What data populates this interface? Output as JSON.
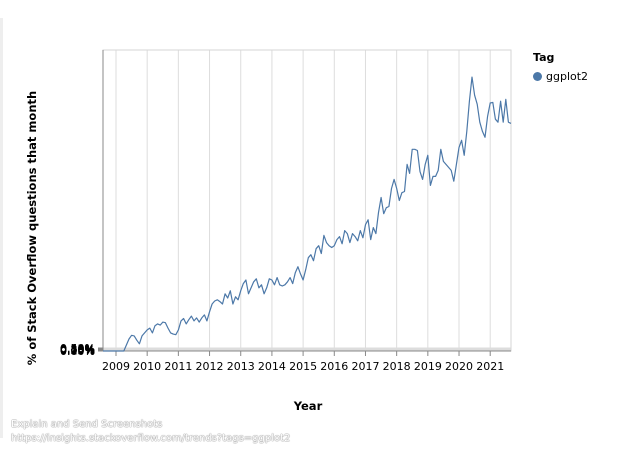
{
  "chart_data": {
    "type": "line",
    "title": "",
    "xlabel": "Year",
    "ylabel": "% of Stack Overflow questions that month",
    "x_ticks": [
      "2009",
      "2010",
      "2011",
      "2012",
      "2013",
      "2014",
      "2015",
      "2016",
      "2017",
      "2018",
      "2019",
      "2020",
      "2021"
    ],
    "y_ticks": [
      "0.00%",
      "0.05%",
      "0.10%",
      "0.15%",
      "0.20%",
      "0.25%",
      "0.30%",
      "0.35%",
      "0.40%",
      "0.45%",
      "0.50%"
    ],
    "xlim": [
      "2008-08",
      "2021-09"
    ],
    "ylim": [
      0,
      0.5
    ],
    "grid": true,
    "legend": {
      "title": "Tag",
      "placement": "top-right"
    },
    "series": [
      {
        "name": "ggplot2",
        "color": "#4c78a8",
        "points": [
          [
            "2008-08",
            0.0
          ],
          [
            "2008-09",
            0.0
          ],
          [
            "2008-10",
            0.0
          ],
          [
            "2008-11",
            0.0
          ],
          [
            "2008-12",
            0.0
          ],
          [
            "2009-01",
            0.0
          ],
          [
            "2009-02",
            0.0
          ],
          [
            "2009-03",
            0.0
          ],
          [
            "2009-04",
            0.0
          ],
          [
            "2009-05",
            0.01
          ],
          [
            "2009-06",
            0.02
          ],
          [
            "2009-07",
            0.026
          ],
          [
            "2009-08",
            0.025
          ],
          [
            "2009-09",
            0.018
          ],
          [
            "2009-10",
            0.012
          ],
          [
            "2009-11",
            0.025
          ],
          [
            "2009-12",
            0.03
          ],
          [
            "2010-01",
            0.035
          ],
          [
            "2010-02",
            0.038
          ],
          [
            "2010-03",
            0.03
          ],
          [
            "2010-04",
            0.042
          ],
          [
            "2010-05",
            0.045
          ],
          [
            "2010-06",
            0.043
          ],
          [
            "2010-07",
            0.048
          ],
          [
            "2010-08",
            0.047
          ],
          [
            "2010-09",
            0.038
          ],
          [
            "2010-10",
            0.03
          ],
          [
            "2010-11",
            0.028
          ],
          [
            "2010-12",
            0.027
          ],
          [
            "2011-01",
            0.035
          ],
          [
            "2011-02",
            0.05
          ],
          [
            "2011-03",
            0.054
          ],
          [
            "2011-04",
            0.045
          ],
          [
            "2011-05",
            0.052
          ],
          [
            "2011-06",
            0.058
          ],
          [
            "2011-07",
            0.05
          ],
          [
            "2011-08",
            0.055
          ],
          [
            "2011-09",
            0.048
          ],
          [
            "2011-10",
            0.055
          ],
          [
            "2011-11",
            0.06
          ],
          [
            "2011-12",
            0.05
          ],
          [
            "2012-01",
            0.065
          ],
          [
            "2012-02",
            0.078
          ],
          [
            "2012-03",
            0.083
          ],
          [
            "2012-04",
            0.085
          ],
          [
            "2012-05",
            0.082
          ],
          [
            "2012-06",
            0.078
          ],
          [
            "2012-07",
            0.095
          ],
          [
            "2012-08",
            0.088
          ],
          [
            "2012-09",
            0.1
          ],
          [
            "2012-10",
            0.078
          ],
          [
            "2012-11",
            0.09
          ],
          [
            "2012-12",
            0.085
          ],
          [
            "2013-01",
            0.1
          ],
          [
            "2013-02",
            0.112
          ],
          [
            "2013-03",
            0.118
          ],
          [
            "2013-04",
            0.095
          ],
          [
            "2013-05",
            0.105
          ],
          [
            "2013-06",
            0.115
          ],
          [
            "2013-07",
            0.12
          ],
          [
            "2013-08",
            0.105
          ],
          [
            "2013-09",
            0.11
          ],
          [
            "2013-10",
            0.095
          ],
          [
            "2013-11",
            0.105
          ],
          [
            "2013-12",
            0.12
          ],
          [
            "2014-01",
            0.118
          ],
          [
            "2014-02",
            0.11
          ],
          [
            "2014-03",
            0.122
          ],
          [
            "2014-04",
            0.11
          ],
          [
            "2014-05",
            0.108
          ],
          [
            "2014-06",
            0.11
          ],
          [
            "2014-07",
            0.115
          ],
          [
            "2014-08",
            0.122
          ],
          [
            "2014-09",
            0.112
          ],
          [
            "2014-10",
            0.13
          ],
          [
            "2014-11",
            0.14
          ],
          [
            "2014-12",
            0.128
          ],
          [
            "2015-01",
            0.118
          ],
          [
            "2015-02",
            0.135
          ],
          [
            "2015-03",
            0.155
          ],
          [
            "2015-04",
            0.16
          ],
          [
            "2015-05",
            0.15
          ],
          [
            "2015-06",
            0.17
          ],
          [
            "2015-07",
            0.175
          ],
          [
            "2015-08",
            0.162
          ],
          [
            "2015-09",
            0.192
          ],
          [
            "2015-10",
            0.18
          ],
          [
            "2015-11",
            0.175
          ],
          [
            "2015-12",
            0.172
          ],
          [
            "2016-01",
            0.175
          ],
          [
            "2016-02",
            0.185
          ],
          [
            "2016-03",
            0.19
          ],
          [
            "2016-04",
            0.178
          ],
          [
            "2016-05",
            0.2
          ],
          [
            "2016-06",
            0.195
          ],
          [
            "2016-07",
            0.18
          ],
          [
            "2016-08",
            0.195
          ],
          [
            "2016-09",
            0.19
          ],
          [
            "2016-10",
            0.183
          ],
          [
            "2016-11",
            0.2
          ],
          [
            "2016-12",
            0.188
          ],
          [
            "2017-01",
            0.21
          ],
          [
            "2017-02",
            0.218
          ],
          [
            "2017-03",
            0.185
          ],
          [
            "2017-04",
            0.205
          ],
          [
            "2017-05",
            0.195
          ],
          [
            "2017-06",
            0.23
          ],
          [
            "2017-07",
            0.255
          ],
          [
            "2017-08",
            0.228
          ],
          [
            "2017-09",
            0.238
          ],
          [
            "2017-10",
            0.24
          ],
          [
            "2017-11",
            0.27
          ],
          [
            "2017-12",
            0.285
          ],
          [
            "2018-01",
            0.27
          ],
          [
            "2018-02",
            0.25
          ],
          [
            "2018-03",
            0.263
          ],
          [
            "2018-04",
            0.265
          ],
          [
            "2018-05",
            0.31
          ],
          [
            "2018-06",
            0.295
          ],
          [
            "2018-07",
            0.335
          ],
          [
            "2018-08",
            0.335
          ],
          [
            "2018-09",
            0.333
          ],
          [
            "2018-10",
            0.298
          ],
          [
            "2018-11",
            0.285
          ],
          [
            "2018-12",
            0.31
          ],
          [
            "2019-01",
            0.325
          ],
          [
            "2019-02",
            0.275
          ],
          [
            "2019-03",
            0.29
          ],
          [
            "2019-04",
            0.29
          ],
          [
            "2019-05",
            0.3
          ],
          [
            "2019-06",
            0.335
          ],
          [
            "2019-07",
            0.315
          ],
          [
            "2019-08",
            0.31
          ],
          [
            "2019-09",
            0.305
          ],
          [
            "2019-10",
            0.3
          ],
          [
            "2019-11",
            0.282
          ],
          [
            "2019-12",
            0.31
          ],
          [
            "2020-01",
            0.338
          ],
          [
            "2020-02",
            0.35
          ],
          [
            "2020-03",
            0.325
          ],
          [
            "2020-04",
            0.365
          ],
          [
            "2020-05",
            0.415
          ],
          [
            "2020-06",
            0.455
          ],
          [
            "2020-07",
            0.425
          ],
          [
            "2020-08",
            0.41
          ],
          [
            "2020-09",
            0.38
          ],
          [
            "2020-10",
            0.365
          ],
          [
            "2020-11",
            0.355
          ],
          [
            "2020-12",
            0.39
          ],
          [
            "2021-01",
            0.412
          ],
          [
            "2021-02",
            0.413
          ],
          [
            "2021-03",
            0.385
          ],
          [
            "2021-04",
            0.38
          ],
          [
            "2021-05",
            0.415
          ],
          [
            "2021-06",
            0.38
          ],
          [
            "2021-07",
            0.418
          ],
          [
            "2021-08",
            0.38
          ],
          [
            "2021-09",
            0.378
          ]
        ]
      }
    ]
  },
  "watermark": {
    "line1": "Explain and Send Screenshots",
    "line2": "https://insights.stackoverflow.com/trends?tags=ggplot2"
  }
}
